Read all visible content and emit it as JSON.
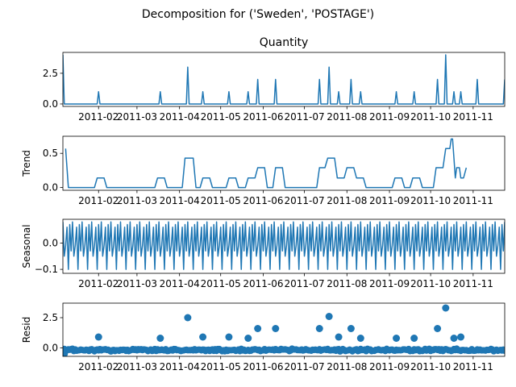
{
  "chart_data": {
    "type": "line",
    "suptitle": "Decomposition for ('Sweden', 'POSTAGE')",
    "color": "#1f77b4",
    "x_range": [
      "2011-01-06",
      "2011-11-24"
    ],
    "x_ticks": [
      "2011-02-01",
      "2011-03-01",
      "2011-04-01",
      "2011-05-01",
      "2011-06-01",
      "2011-07-01",
      "2011-08-01",
      "2011-09-01",
      "2011-10-01",
      "2011-11-01"
    ],
    "x_tick_labels": [
      "2011-02",
      "2011-03",
      "2011-04",
      "2011-05",
      "2011-06",
      "2011-07",
      "2011-08",
      "2011-09",
      "2011-10",
      "2011-11"
    ],
    "panels": [
      {
        "title": "Quantity",
        "ylabel": "",
        "kind": "line",
        "ylim": [
          -0.2,
          4.2
        ],
        "yticks": [
          0.0,
          2.5
        ],
        "ytick_labels": [
          "0.0",
          "2.5"
        ],
        "baseline": 0,
        "first_value": 4.0,
        "spikes": [
          {
            "date": "2011-02-01",
            "value": 1
          },
          {
            "date": "2011-03-18",
            "value": 1
          },
          {
            "date": "2011-04-07",
            "value": 3
          },
          {
            "date": "2011-04-18",
            "value": 1
          },
          {
            "date": "2011-05-07",
            "value": 1
          },
          {
            "date": "2011-05-21",
            "value": 1
          },
          {
            "date": "2011-05-28",
            "value": 2
          },
          {
            "date": "2011-06-10",
            "value": 2
          },
          {
            "date": "2011-07-12",
            "value": 2
          },
          {
            "date": "2011-07-19",
            "value": 3
          },
          {
            "date": "2011-07-26",
            "value": 1
          },
          {
            "date": "2011-08-04",
            "value": 2
          },
          {
            "date": "2011-08-11",
            "value": 1
          },
          {
            "date": "2011-09-06",
            "value": 1
          },
          {
            "date": "2011-09-19",
            "value": 1
          },
          {
            "date": "2011-10-06",
            "value": 2
          },
          {
            "date": "2011-10-12",
            "value": 4
          },
          {
            "date": "2011-10-18",
            "value": 1
          },
          {
            "date": "2011-10-23",
            "value": 1
          },
          {
            "date": "2011-11-04",
            "value": 2
          }
        ]
      },
      {
        "title": "",
        "ylabel": "Trend",
        "kind": "line",
        "ylim": [
          -0.04,
          0.75
        ],
        "yticks": [
          0.0,
          0.5
        ],
        "ytick_labels": [
          "0.0",
          "0.5"
        ],
        "points": [
          [
            "2011-01-08",
            0.57
          ],
          [
            "2011-01-10",
            0.0
          ],
          [
            "2011-01-29",
            0.0
          ],
          [
            "2011-01-31",
            0.14
          ],
          [
            "2011-02-05",
            0.14
          ],
          [
            "2011-02-07",
            0.0
          ],
          [
            "2011-03-14",
            0.0
          ],
          [
            "2011-03-16",
            0.14
          ],
          [
            "2011-03-21",
            0.14
          ],
          [
            "2011-03-23",
            0.0
          ],
          [
            "2011-04-03",
            0.0
          ],
          [
            "2011-04-05",
            0.43
          ],
          [
            "2011-04-11",
            0.43
          ],
          [
            "2011-04-13",
            0.0
          ],
          [
            "2011-04-16",
            0.0
          ],
          [
            "2011-04-18",
            0.14
          ],
          [
            "2011-04-23",
            0.14
          ],
          [
            "2011-04-25",
            0.0
          ],
          [
            "2011-05-05",
            0.0
          ],
          [
            "2011-05-07",
            0.14
          ],
          [
            "2011-05-12",
            0.14
          ],
          [
            "2011-05-14",
            0.0
          ],
          [
            "2011-05-19",
            0.0
          ],
          [
            "2011-05-21",
            0.14
          ],
          [
            "2011-05-26",
            0.14
          ],
          [
            "2011-05-28",
            0.29
          ],
          [
            "2011-06-02",
            0.29
          ],
          [
            "2011-06-04",
            0.0
          ],
          [
            "2011-06-08",
            0.0
          ],
          [
            "2011-06-10",
            0.29
          ],
          [
            "2011-06-15",
            0.29
          ],
          [
            "2011-06-17",
            0.0
          ],
          [
            "2011-07-10",
            0.0
          ],
          [
            "2011-07-12",
            0.29
          ],
          [
            "2011-07-16",
            0.29
          ],
          [
            "2011-07-18",
            0.43
          ],
          [
            "2011-07-23",
            0.43
          ],
          [
            "2011-07-25",
            0.14
          ],
          [
            "2011-07-30",
            0.14
          ],
          [
            "2011-08-01",
            0.29
          ],
          [
            "2011-08-06",
            0.29
          ],
          [
            "2011-08-08",
            0.14
          ],
          [
            "2011-08-13",
            0.14
          ],
          [
            "2011-08-15",
            0.0
          ],
          [
            "2011-09-03",
            0.0
          ],
          [
            "2011-09-05",
            0.14
          ],
          [
            "2011-09-10",
            0.14
          ],
          [
            "2011-09-12",
            0.0
          ],
          [
            "2011-09-16",
            0.0
          ],
          [
            "2011-09-18",
            0.14
          ],
          [
            "2011-09-23",
            0.14
          ],
          [
            "2011-09-25",
            0.0
          ],
          [
            "2011-10-03",
            0.0
          ],
          [
            "2011-10-05",
            0.29
          ],
          [
            "2011-10-10",
            0.29
          ],
          [
            "2011-10-12",
            0.57
          ],
          [
            "2011-10-15",
            0.57
          ],
          [
            "2011-10-16",
            0.71
          ],
          [
            "2011-10-17",
            0.71
          ],
          [
            "2011-10-18",
            0.43
          ],
          [
            "2011-10-19",
            0.14
          ],
          [
            "2011-10-20",
            0.29
          ],
          [
            "2011-10-22",
            0.29
          ],
          [
            "2011-10-23",
            0.14
          ],
          [
            "2011-10-25",
            0.14
          ],
          [
            "2011-10-27",
            0.29
          ]
        ]
      },
      {
        "title": "",
        "ylabel": "Seasonal",
        "kind": "line",
        "ylim": [
          -0.115,
          0.09
        ],
        "yticks": [
          0.0,
          -0.1
        ],
        "ytick_labels": [
          "0.0",
          "−0.1"
        ],
        "period_days": 7,
        "weekly_pattern": [
          0.08,
          -0.05,
          -0.01,
          0.06,
          -0.1,
          0.07,
          -0.03
        ]
      },
      {
        "title": "",
        "ylabel": "Resid",
        "kind": "scatter",
        "ylim": [
          -0.7,
          3.7
        ],
        "yticks": [
          0.0,
          2.5
        ],
        "ytick_labels": [
          "0.0",
          "2.5"
        ],
        "outliers": [
          [
            "2011-01-07",
            -0.5
          ],
          [
            "2011-02-01",
            0.9
          ],
          [
            "2011-03-18",
            0.8
          ],
          [
            "2011-04-07",
            2.5
          ],
          [
            "2011-04-18",
            0.9
          ],
          [
            "2011-05-07",
            0.9
          ],
          [
            "2011-05-21",
            0.8
          ],
          [
            "2011-05-28",
            1.6
          ],
          [
            "2011-06-10",
            1.6
          ],
          [
            "2011-07-12",
            1.6
          ],
          [
            "2011-07-19",
            2.6
          ],
          [
            "2011-07-26",
            0.9
          ],
          [
            "2011-08-04",
            1.6
          ],
          [
            "2011-08-11",
            0.8
          ],
          [
            "2011-09-06",
            0.8
          ],
          [
            "2011-09-19",
            0.8
          ],
          [
            "2011-10-06",
            1.6
          ],
          [
            "2011-10-12",
            3.3
          ],
          [
            "2011-10-18",
            0.8
          ],
          [
            "2011-10-23",
            0.9
          ]
        ],
        "background_range": [
          -0.45,
          0.12
        ]
      }
    ]
  }
}
